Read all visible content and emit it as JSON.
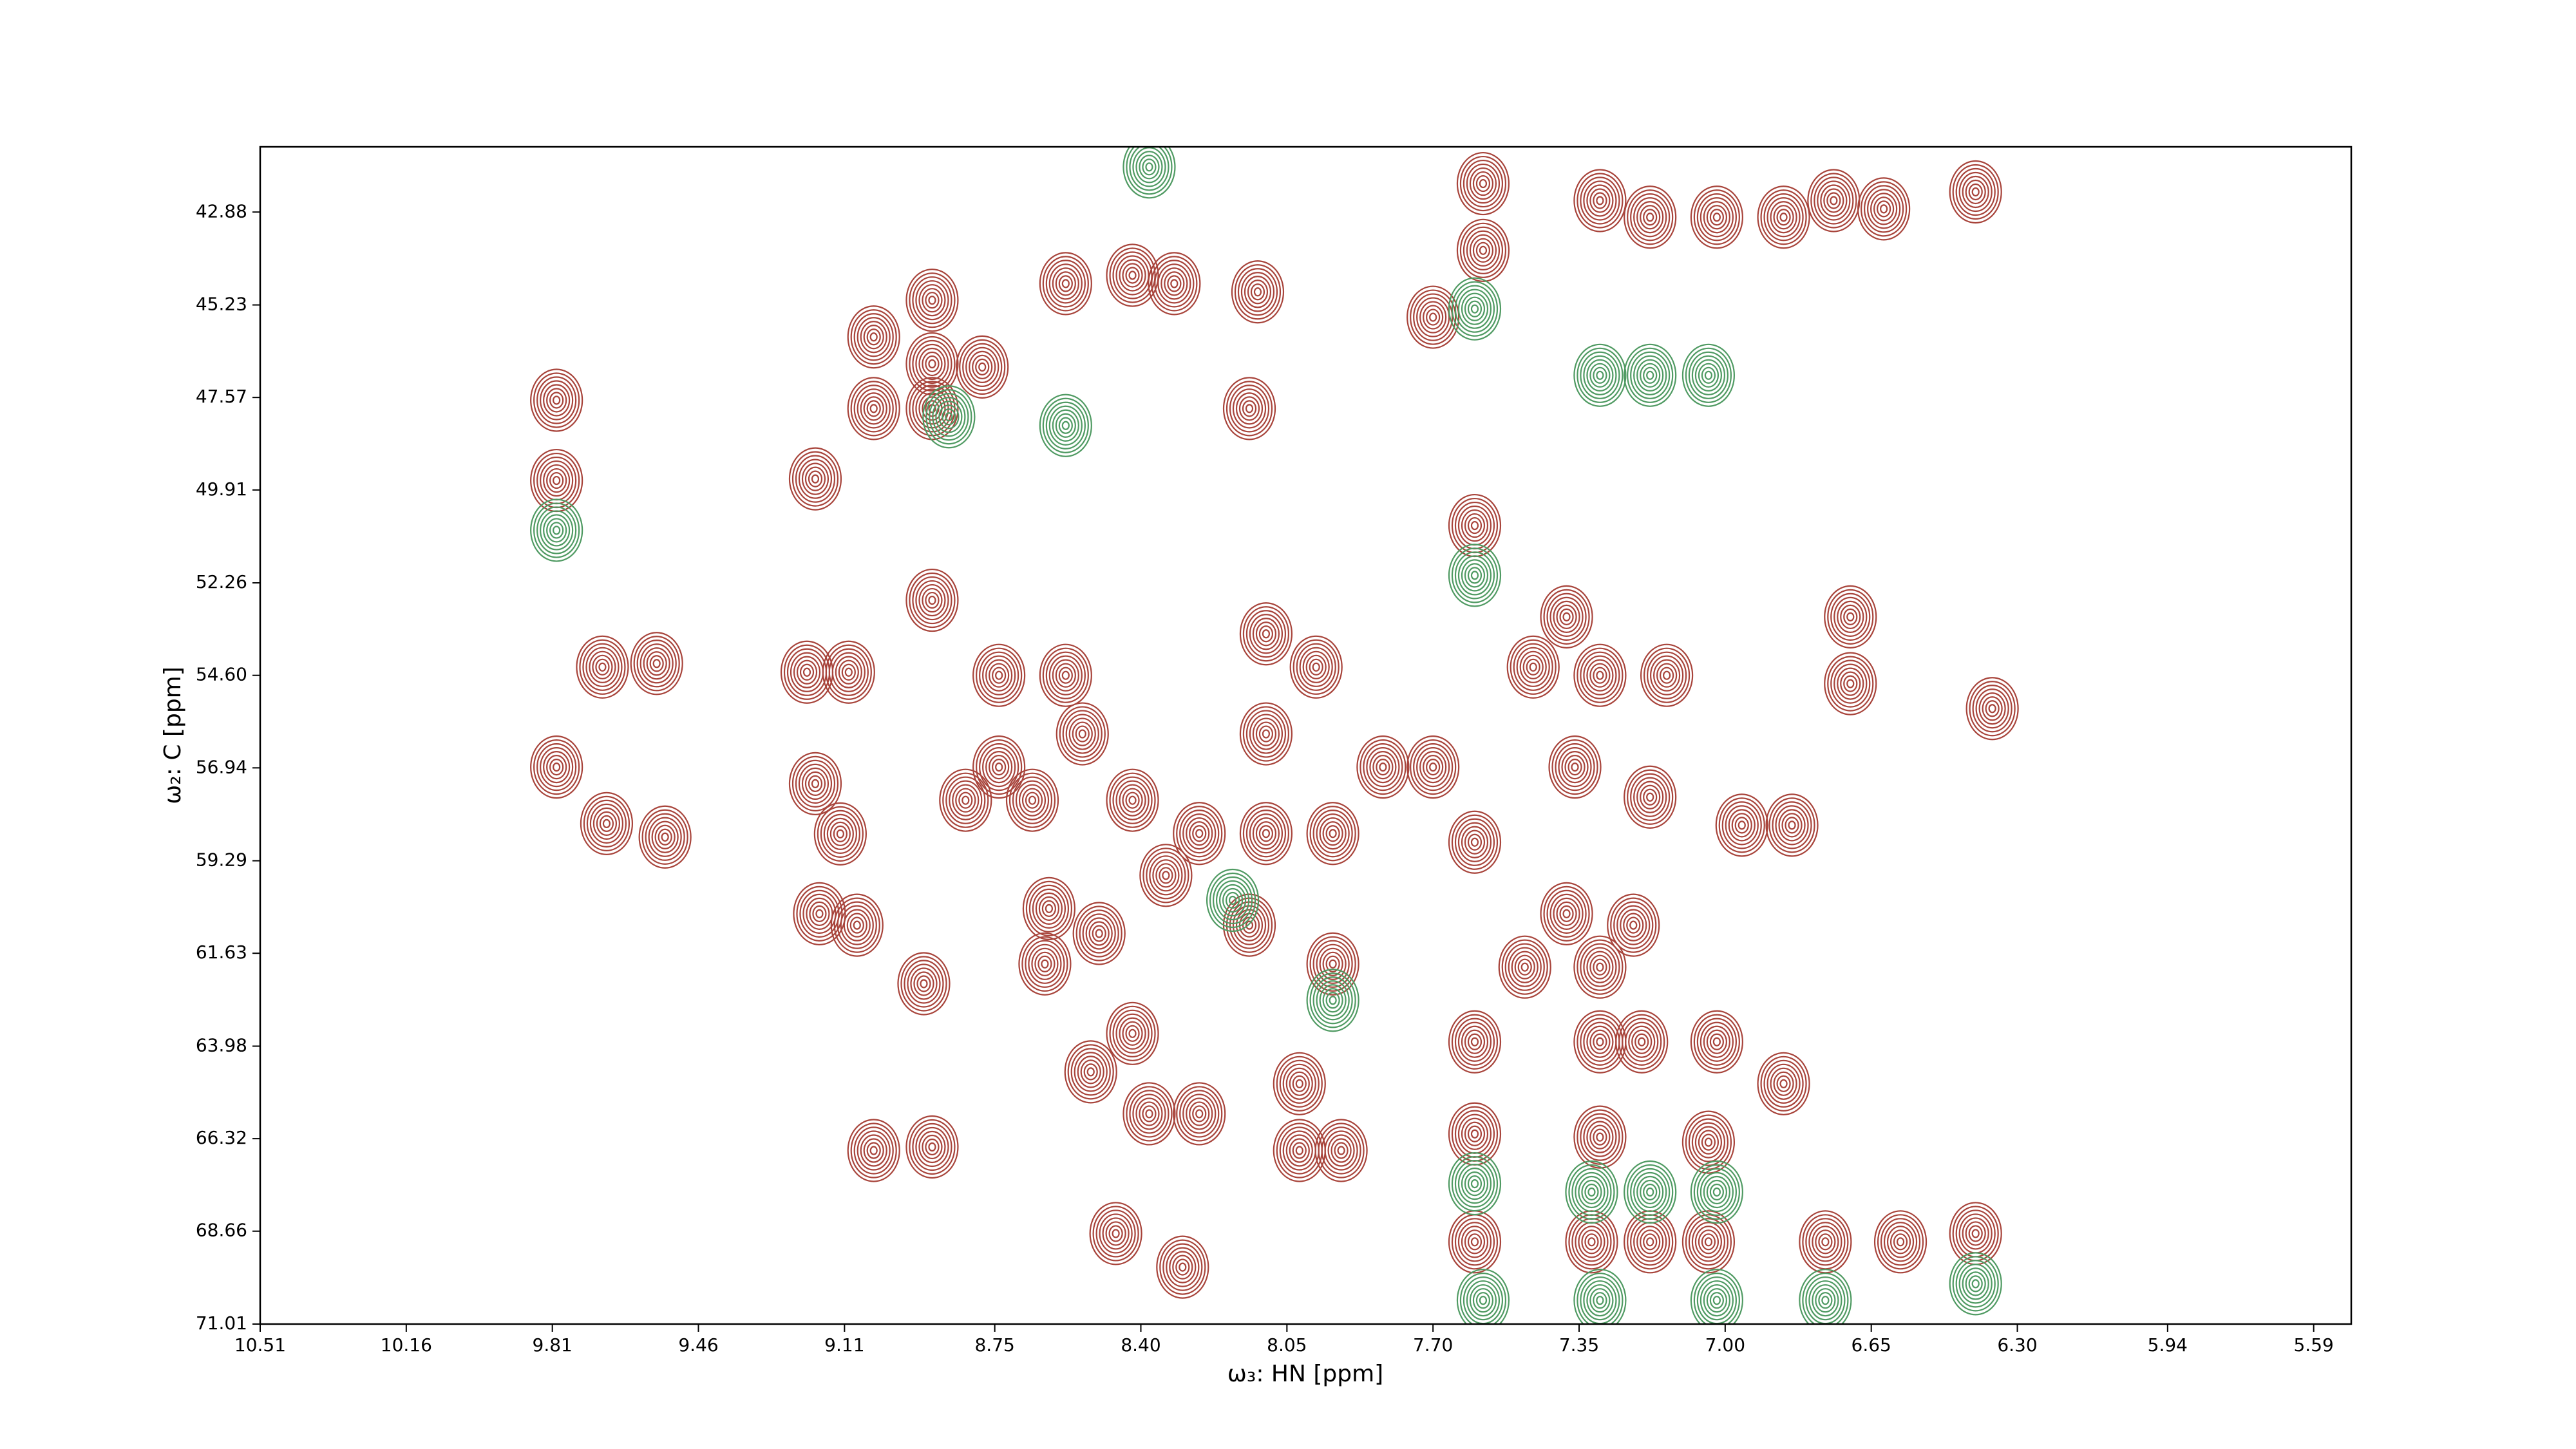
{
  "chart_data": {
    "type": "contour",
    "xlabel": "ω₃: HN [ppm]",
    "ylabel": "ω₂: C [ppm]",
    "xlim": [
      10.51,
      5.5
    ],
    "ylim": [
      71.01,
      41.23
    ],
    "xticks": [
      10.51,
      10.16,
      9.81,
      9.46,
      9.11,
      8.75,
      {
        "value": 8.4,
        "label": "8.40"
      },
      8.05,
      {
        "value": 7.7,
        "label": "7.70"
      },
      7.35,
      {
        "value": 7.0,
        "label": "7.00"
      },
      6.65,
      {
        "value": 6.3,
        "label": "6.30"
      },
      5.94,
      5.59
    ],
    "yticks": [
      42.88,
      45.23,
      47.57,
      49.91,
      52.26,
      {
        "value": 54.6,
        "label": "54.60"
      },
      56.94,
      59.29,
      61.63,
      63.98,
      66.32,
      68.66,
      71.01
    ],
    "series": [
      {
        "color": "#a8443b",
        "x": [
          9.8,
          9.8,
          9.69,
          9.56,
          9.8,
          9.68,
          9.54,
          9.18,
          9.2,
          9.1,
          9.18,
          9.12,
          9.17,
          9.08,
          8.92,
          9.04,
          8.9,
          9.04,
          9.04,
          8.9,
          8.9,
          8.9,
          8.78,
          8.58,
          8.42,
          8.32,
          8.12,
          8.14,
          8.9,
          8.74,
          8.58,
          8.74,
          8.54,
          8.82,
          8.66,
          8.42,
          8.26,
          8.34,
          8.62,
          8.5,
          8.63,
          8.42,
          8.52,
          8.38,
          8.26,
          8.14,
          7.94,
          8.02,
          8.02,
          7.92,
          8.1,
          7.98,
          8.1,
          7.82,
          7.7,
          8.1,
          7.94,
          7.6,
          8.46,
          8.3,
          7.58,
          7.58,
          7.3,
          7.18,
          7.02,
          6.86,
          6.74,
          6.62,
          6.4,
          7.7,
          7.6,
          7.38,
          7.46,
          7.3,
          7.14,
          7.36,
          7.18,
          6.96,
          6.84,
          7.38,
          7.22,
          7.48,
          7.3,
          6.7,
          6.7,
          6.36,
          7.6,
          7.3,
          7.2,
          7.02,
          6.86,
          7.6,
          7.3,
          7.04,
          7.6,
          7.32,
          7.18,
          7.04,
          6.76,
          6.58,
          6.4
        ],
        "y": [
          47.64,
          49.67,
          54.39,
          54.3,
          56.92,
          58.35,
          58.69,
          49.63,
          54.52,
          54.52,
          57.34,
          58.61,
          60.63,
          60.92,
          62.4,
          66.62,
          66.53,
          46.04,
          47.85,
          45.11,
          46.72,
          47.85,
          46.8,
          44.69,
          44.48,
          44.69,
          44.9,
          47.85,
          52.7,
          54.6,
          54.6,
          56.92,
          56.08,
          57.76,
          57.76,
          57.76,
          58.6,
          59.66,
          60.5,
          61.13,
          61.9,
          63.66,
          64.63,
          65.69,
          65.69,
          60.92,
          61.9,
          64.93,
          66.62,
          66.62,
          53.55,
          54.39,
          56.08,
          56.92,
          56.92,
          58.6,
          58.6,
          58.82,
          68.72,
          69.57,
          42.16,
          43.85,
          42.59,
          43.01,
          43.01,
          43.01,
          42.59,
          42.8,
          42.37,
          45.54,
          50.81,
          53.12,
          54.39,
          54.6,
          54.6,
          56.92,
          57.68,
          58.39,
          58.39,
          60.63,
          60.92,
          61.98,
          61.98,
          53.12,
          54.81,
          55.44,
          63.87,
          63.87,
          63.87,
          63.87,
          64.93,
          66.2,
          66.28,
          66.41,
          68.93,
          68.93,
          68.93,
          68.93,
          68.93,
          68.93,
          68.72
        ]
      },
      {
        "color": "#4f9a62",
        "x": [
          9.8,
          8.38,
          8.58,
          7.6,
          7.3,
          7.18,
          7.04,
          7.6,
          7.6,
          7.32,
          7.18,
          7.02,
          7.58,
          7.3,
          7.02,
          6.76,
          6.4,
          7.94,
          8.18,
          8.86
        ],
        "y": [
          50.93,
          41.74,
          48.28,
          45.33,
          47.01,
          47.01,
          47.01,
          52.07,
          67.46,
          67.67,
          67.67,
          67.67,
          70.41,
          70.41,
          70.41,
          70.41,
          69.99,
          62.82,
          60.29,
          48.06
        ]
      }
    ]
  }
}
